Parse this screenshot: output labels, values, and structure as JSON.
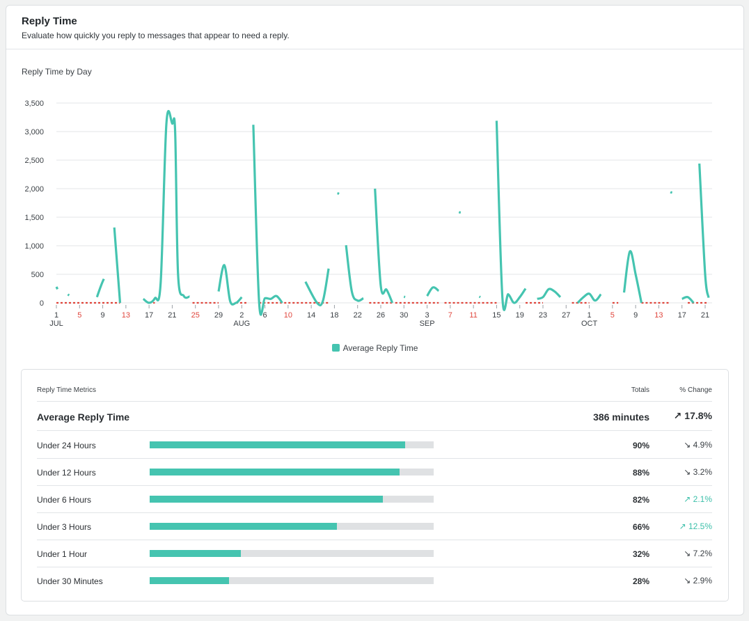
{
  "card": {
    "title": "Reply Time",
    "subtitle": "Evaluate how quickly you reply to messages that appear to need a reply."
  },
  "chart_data": {
    "type": "line",
    "title": "Reply Time by Day",
    "series_name": "Average Reply Time",
    "series_color": "#45c4b0",
    "zero_marker_color": "#e0463d",
    "weekend_tick_color": "#e0463d",
    "ylim": [
      0,
      3500
    ],
    "yticks": [
      "0",
      "500",
      "1,000",
      "1,500",
      "2,000",
      "2,500",
      "3,000",
      "3,500"
    ],
    "ytick_values": [
      0,
      500,
      1000,
      1500,
      2000,
      2500,
      3000,
      3500
    ],
    "grid": true,
    "legend": "bottom-center",
    "x_start": "2020-07-01",
    "x_count": 113,
    "xticks": [
      {
        "i": 0,
        "label": "1",
        "month": "JUL",
        "weekend": false
      },
      {
        "i": 4,
        "label": "5",
        "weekend": true
      },
      {
        "i": 8,
        "label": "9",
        "weekend": false
      },
      {
        "i": 12,
        "label": "13",
        "weekend": true
      },
      {
        "i": 16,
        "label": "17",
        "weekend": false
      },
      {
        "i": 20,
        "label": "21",
        "weekend": false
      },
      {
        "i": 24,
        "label": "25",
        "weekend": true
      },
      {
        "i": 28,
        "label": "29",
        "weekend": false
      },
      {
        "i": 32,
        "label": "2",
        "month": "AUG",
        "weekend": false
      },
      {
        "i": 36,
        "label": "6",
        "weekend": false
      },
      {
        "i": 40,
        "label": "10",
        "weekend": true
      },
      {
        "i": 44,
        "label": "14",
        "weekend": false
      },
      {
        "i": 48,
        "label": "18",
        "weekend": false
      },
      {
        "i": 52,
        "label": "22",
        "weekend": false
      },
      {
        "i": 56,
        "label": "26",
        "weekend": false
      },
      {
        "i": 60,
        "label": "30",
        "weekend": false
      },
      {
        "i": 64,
        "label": "3",
        "month": "SEP",
        "weekend": false
      },
      {
        "i": 68,
        "label": "7",
        "weekend": true
      },
      {
        "i": 72,
        "label": "11",
        "weekend": true
      },
      {
        "i": 76,
        "label": "15",
        "weekend": false
      },
      {
        "i": 80,
        "label": "19",
        "weekend": false
      },
      {
        "i": 84,
        "label": "23",
        "weekend": false
      },
      {
        "i": 88,
        "label": "27",
        "weekend": false
      },
      {
        "i": 92,
        "label": "1",
        "month": "OCT",
        "weekend": false
      },
      {
        "i": 96,
        "label": "5",
        "weekend": true
      },
      {
        "i": 100,
        "label": "9",
        "weekend": false
      },
      {
        "i": 104,
        "label": "13",
        "weekend": true
      },
      {
        "i": 108,
        "label": "17",
        "weekend": false
      },
      {
        "i": 112,
        "label": "21",
        "weekend": false
      }
    ],
    "segments": [
      [
        [
          0,
          280
        ],
        [
          0.2,
          240
        ]
      ],
      [
        [
          2,
          150
        ],
        [
          2.2,
          130
        ]
      ],
      [
        [
          7,
          100
        ],
        [
          7.7,
          300
        ],
        [
          8.2,
          420
        ]
      ],
      [
        [
          10,
          1320
        ],
        [
          11,
          0
        ]
      ],
      [
        [
          15,
          70
        ],
        [
          16,
          0
        ],
        [
          17,
          80
        ],
        [
          18,
          350
        ],
        [
          19,
          3150
        ],
        [
          20,
          3140
        ],
        [
          20.5,
          3000
        ],
        [
          21,
          500
        ],
        [
          22,
          120
        ],
        [
          23,
          110
        ]
      ],
      [
        [
          28,
          200
        ],
        [
          29,
          660
        ],
        [
          30,
          30
        ],
        [
          31,
          0
        ],
        [
          31.5,
          40
        ],
        [
          32,
          100
        ]
      ],
      [
        [
          34,
          3120
        ],
        [
          35,
          0
        ],
        [
          36,
          80
        ],
        [
          37,
          70
        ],
        [
          38,
          120
        ],
        [
          39,
          0
        ]
      ],
      [
        [
          43,
          370
        ],
        [
          45,
          0
        ],
        [
          46,
          30
        ],
        [
          47,
          600
        ]
      ],
      [
        [
          48.5,
          1920
        ],
        [
          48.8,
          1910
        ]
      ],
      [
        [
          50,
          1010
        ],
        [
          51,
          200
        ],
        [
          52,
          40
        ],
        [
          53,
          80
        ]
      ],
      [
        [
          55,
          2000
        ],
        [
          56,
          300
        ],
        [
          57,
          230
        ],
        [
          58,
          0
        ]
      ],
      [
        [
          60,
          110
        ],
        [
          60.2,
          100
        ]
      ],
      [
        [
          64,
          120
        ],
        [
          65,
          270
        ],
        [
          66,
          210
        ]
      ],
      [
        [
          69.5,
          1590
        ],
        [
          69.8,
          1580
        ]
      ],
      [
        [
          73,
          110
        ],
        [
          73.2,
          100
        ]
      ],
      [
        [
          76,
          3190
        ],
        [
          77,
          80
        ],
        [
          78,
          150
        ],
        [
          79,
          0
        ],
        [
          80,
          100
        ],
        [
          81,
          250
        ]
      ],
      [
        [
          83,
          70
        ],
        [
          84,
          100
        ],
        [
          85,
          240
        ],
        [
          86,
          200
        ],
        [
          87,
          100
        ]
      ],
      [
        [
          90,
          0
        ],
        [
          91,
          100
        ],
        [
          92,
          160
        ],
        [
          93,
          40
        ],
        [
          94,
          150
        ]
      ],
      [
        [
          98,
          180
        ],
        [
          99,
          900
        ],
        [
          100,
          500
        ],
        [
          101,
          0
        ]
      ],
      [
        [
          106,
          1940
        ],
        [
          106.3,
          1930
        ]
      ],
      [
        [
          108,
          70
        ],
        [
          109,
          100
        ],
        [
          110,
          0
        ]
      ],
      [
        [
          111,
          2440
        ],
        [
          112,
          500
        ],
        [
          112.6,
          90
        ]
      ]
    ],
    "zero_ranges": [
      [
        0,
        11
      ],
      [
        16,
        17
      ],
      [
        23.5,
        28
      ],
      [
        31,
        33
      ],
      [
        35,
        47
      ],
      [
        54,
        58
      ],
      [
        58.5,
        66
      ],
      [
        67,
        76
      ],
      [
        81,
        84
      ],
      [
        89,
        92
      ],
      [
        96,
        97
      ],
      [
        101,
        106
      ],
      [
        109,
        112.5
      ]
    ]
  },
  "legend": {
    "label": "Average Reply Time",
    "color": "#45c4b0"
  },
  "metrics": {
    "header": {
      "name": "Reply Time Metrics",
      "totals": "Totals",
      "change": "% Change"
    },
    "main": {
      "label": "Average Reply Time",
      "total": "386 minutes",
      "arrow": "↗",
      "change": "17.8%"
    },
    "rows": [
      {
        "label": "Under 24 Hours",
        "value": 0.9,
        "total": "90%",
        "arrow": "↘",
        "change": "4.9%",
        "direction": "down"
      },
      {
        "label": "Under 12 Hours",
        "value": 0.88,
        "total": "88%",
        "arrow": "↘",
        "change": "3.2%",
        "direction": "down"
      },
      {
        "label": "Under 6 Hours",
        "value": 0.82,
        "total": "82%",
        "arrow": "↗",
        "change": "2.1%",
        "direction": "up"
      },
      {
        "label": "Under 3 Hours",
        "value": 0.66,
        "total": "66%",
        "arrow": "↗",
        "change": "12.5%",
        "direction": "up"
      },
      {
        "label": "Under 1 Hour",
        "value": 0.32,
        "total": "32%",
        "arrow": "↘",
        "change": "7.2%",
        "direction": "down"
      },
      {
        "label": "Under 30 Minutes",
        "value": 0.28,
        "total": "28%",
        "arrow": "↘",
        "change": "2.9%",
        "direction": "down"
      }
    ]
  }
}
